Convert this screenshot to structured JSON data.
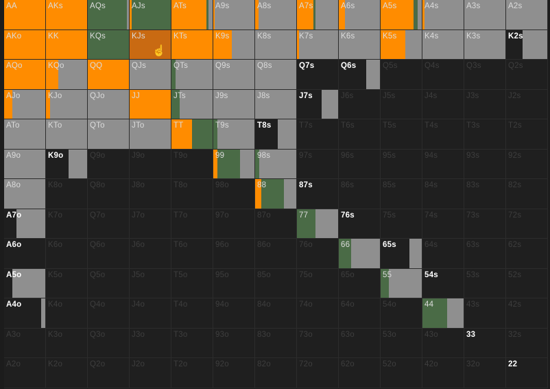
{
  "ranks": [
    "A",
    "K",
    "Q",
    "J",
    "T",
    "9",
    "8",
    "7",
    "6",
    "5",
    "4",
    "3",
    "2"
  ],
  "colors": {
    "raise": "#ff8c00",
    "call": "#4a6b46",
    "mix": "#8f8f8f",
    "fold": "#1f1f1f",
    "hover": "#c96a12"
  },
  "cells": {
    "AA": [
      [
        1,
        "raise"
      ]
    ],
    "AKs": [
      [
        1,
        "raise"
      ]
    ],
    "AQs": [
      [
        0.95,
        "call"
      ],
      [
        0.05,
        "mix"
      ]
    ],
    "AJs": [
      [
        0.05,
        "raise"
      ],
      [
        0.95,
        "call"
      ]
    ],
    "ATs": [
      [
        0.85,
        "raise"
      ],
      [
        0.05,
        "call"
      ],
      [
        0.1,
        "mix"
      ]
    ],
    "A9s": [
      [
        0.03,
        "raise"
      ],
      [
        0.97,
        "mix"
      ]
    ],
    "A8s": [
      [
        0.08,
        "raise"
      ],
      [
        0.92,
        "mix"
      ]
    ],
    "A7s": [
      [
        0.4,
        "raise"
      ],
      [
        0.05,
        "call"
      ],
      [
        0.55,
        "mix"
      ]
    ],
    "A6s": [
      [
        0.15,
        "raise"
      ],
      [
        0.85,
        "mix"
      ]
    ],
    "A5s": [
      [
        0.8,
        "raise"
      ],
      [
        0.1,
        "call"
      ],
      [
        0.1,
        "mix"
      ]
    ],
    "A4s": [
      [
        0.05,
        "raise"
      ],
      [
        0.95,
        "mix"
      ]
    ],
    "A3s": [
      [
        1,
        "mix"
      ]
    ],
    "A2s": [
      [
        1,
        "mix"
      ]
    ],
    "AKo": [
      [
        1,
        "raise"
      ]
    ],
    "KK": [
      [
        1,
        "raise"
      ]
    ],
    "KQs": [
      [
        1,
        "call"
      ]
    ],
    "KJs": [
      [
        1,
        "hover"
      ]
    ],
    "KTs": [
      [
        1,
        "raise"
      ]
    ],
    "K9s": [
      [
        0.45,
        "raise"
      ],
      [
        0.55,
        "mix"
      ]
    ],
    "K8s": [
      [
        1,
        "mix"
      ]
    ],
    "K7s": [
      [
        0.05,
        "raise"
      ],
      [
        0.95,
        "mix"
      ]
    ],
    "K6s": [
      [
        1,
        "mix"
      ]
    ],
    "K5s": [
      [
        0.6,
        "raise"
      ],
      [
        0.4,
        "mix"
      ]
    ],
    "K4s": [
      [
        1,
        "mix"
      ]
    ],
    "K3s": [
      [
        1,
        "mix"
      ]
    ],
    "K2s": [
      [
        0.4,
        "fold"
      ],
      [
        0.6,
        "mix"
      ]
    ],
    "AQo": [
      [
        1,
        "raise"
      ]
    ],
    "KQo": [
      [
        0.3,
        "raise"
      ],
      [
        0.7,
        "mix"
      ]
    ],
    "QQ": [
      [
        1,
        "raise"
      ]
    ],
    "QJs": [
      [
        1,
        "mix"
      ]
    ],
    "QTs": [
      [
        0.1,
        "call"
      ],
      [
        0.9,
        "mix"
      ]
    ],
    "Q9s": [
      [
        1,
        "mix"
      ]
    ],
    "Q8s": [
      [
        1,
        "mix"
      ]
    ],
    "Q7s": [
      [
        1,
        "fold"
      ]
    ],
    "Q6s": [
      [
        0.66,
        "fold"
      ],
      [
        0.34,
        "mix"
      ]
    ],
    "AJo": [
      [
        0.2,
        "raise"
      ],
      [
        0.8,
        "mix"
      ]
    ],
    "KJo": [
      [
        0.1,
        "raise"
      ],
      [
        0.9,
        "mix"
      ]
    ],
    "QJo": [
      [
        1,
        "mix"
      ]
    ],
    "JJ": [
      [
        1,
        "raise"
      ]
    ],
    "JTs": [
      [
        0.2,
        "call"
      ],
      [
        0.8,
        "mix"
      ]
    ],
    "J9s": [
      [
        1,
        "mix"
      ]
    ],
    "J8s": [
      [
        1,
        "mix"
      ]
    ],
    "J7s": [
      [
        0.6,
        "fold"
      ],
      [
        0.4,
        "mix"
      ]
    ],
    "ATo": [
      [
        1,
        "mix"
      ]
    ],
    "KTo": [
      [
        1,
        "mix"
      ]
    ],
    "QTo": [
      [
        1,
        "mix"
      ]
    ],
    "JTo": [
      [
        1,
        "mix"
      ]
    ],
    "TT": [
      [
        0.5,
        "raise"
      ],
      [
        0.5,
        "call"
      ]
    ],
    "T9s": [
      [
        0.1,
        "call"
      ],
      [
        0.9,
        "mix"
      ]
    ],
    "T8s": [
      [
        0.55,
        "fold"
      ],
      [
        0.45,
        "mix"
      ]
    ],
    "A9o": [
      [
        1,
        "mix"
      ]
    ],
    "K9o": [
      [
        0.55,
        "fold"
      ],
      [
        0.45,
        "mix"
      ]
    ],
    "99": [
      [
        0.1,
        "raise"
      ],
      [
        0.55,
        "call"
      ],
      [
        0.35,
        "mix"
      ]
    ],
    "98s": [
      [
        0.1,
        "call"
      ],
      [
        0.9,
        "mix"
      ]
    ],
    "A8o": [
      [
        1,
        "mix"
      ]
    ],
    "88": [
      [
        0.15,
        "raise"
      ],
      [
        0.55,
        "call"
      ],
      [
        0.3,
        "mix"
      ]
    ],
    "87s": [
      [
        1,
        "fold"
      ]
    ],
    "A7o": [
      [
        0.3,
        "fold"
      ],
      [
        0.7,
        "mix"
      ]
    ],
    "77": [
      [
        0.45,
        "call"
      ],
      [
        0.55,
        "mix"
      ]
    ],
    "76s": [
      [
        1,
        "fold"
      ]
    ],
    "A6o": [
      [
        1,
        "fold"
      ]
    ],
    "66": [
      [
        0.3,
        "call"
      ],
      [
        0.7,
        "mix"
      ]
    ],
    "65s": [
      [
        0.7,
        "fold"
      ],
      [
        0.3,
        "mix"
      ]
    ],
    "A5o": [
      [
        0.2,
        "fold"
      ],
      [
        0.8,
        "mix"
      ]
    ],
    "55": [
      [
        0.2,
        "call"
      ],
      [
        0.8,
        "mix"
      ]
    ],
    "54s": [
      [
        1,
        "fold"
      ]
    ],
    "A4o": [
      [
        0.9,
        "fold"
      ],
      [
        0.1,
        "mix"
      ]
    ],
    "44": [
      [
        0.6,
        "call"
      ],
      [
        0.4,
        "mix"
      ]
    ],
    "33": [
      [
        1,
        "fold"
      ]
    ],
    "22": [
      [
        1,
        "fold"
      ]
    ]
  },
  "bright_folded": [
    "Q7s",
    "Q6s",
    "J7s",
    "T8s",
    "K9o",
    "87s",
    "76s",
    "A6o",
    "65s",
    "54s",
    "A4o",
    "33",
    "22",
    "K2s",
    "A7o",
    "A5o"
  ],
  "cursor_label": "hand-pointer"
}
